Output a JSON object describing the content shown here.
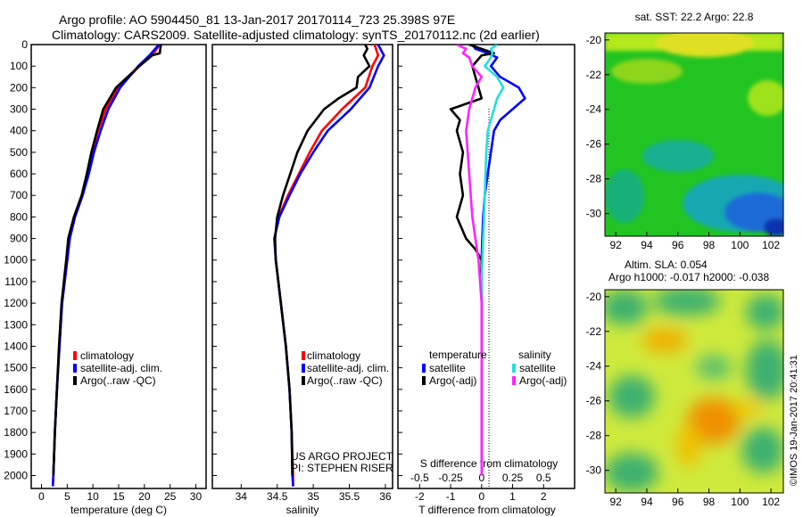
{
  "header": {
    "title_line1": "Argo profile: AO 5904450_81 13-Jan-2017 20170114_723 25.398S 97E",
    "title_line2": "Climatology: CARS2009. Satellite-adjusted climatology: synTS_20170112.nc (2d earlier)"
  },
  "colors": {
    "climatology": "#ff0000",
    "satellite": "#0000ff",
    "argo": "#000000",
    "sal_satellite": "#22dddd",
    "sal_argo": "#ff22ff"
  },
  "depth_axis": {
    "ticks": [
      "0",
      "100",
      "200",
      "300",
      "400",
      "500",
      "600",
      "700",
      "800",
      "900",
      "1000",
      "1100",
      "1200",
      "1300",
      "1400",
      "1500",
      "1600",
      "1700",
      "1800",
      "1900",
      "2000"
    ],
    "range": [
      0,
      2060
    ]
  },
  "legend_main": {
    "climatology": "climatology",
    "satellite": "satellite-adj. clim.",
    "argo": "Argo(..raw -QC)"
  },
  "project": {
    "line1": "US ARGO PROJECT",
    "line2": "PI: STEPHEN RISER"
  },
  "legend_diff": {
    "temp_title": "temperature",
    "sal_title": "salinity",
    "satellite": "satellite",
    "argo": "Argo(-adj)"
  },
  "map_sst": {
    "title": "sat. SST: 22.2  Argo: 22.8",
    "xticks": [
      "92",
      "94",
      "96",
      "98",
      "100",
      "102"
    ],
    "yticks": [
      "-20",
      "-22",
      "-24",
      "-26",
      "-28",
      "-30"
    ]
  },
  "map_sla": {
    "title1": "Altim. SLA: 0.054",
    "title2": "Argo h1000: -0.017 h2000: -0.038",
    "xticks": [
      "92",
      "94",
      "96",
      "98",
      "100",
      "102"
    ],
    "yticks": [
      "-20",
      "-22",
      "-24",
      "-26",
      "-28",
      "-30"
    ]
  },
  "credit": "©IMOS 19-Jan-2017 20:41:31",
  "chart_data": [
    {
      "type": "line",
      "xlabel": "temperature (deg C)",
      "xlim": [
        -2,
        32
      ],
      "xticks": [
        "0",
        "5",
        "10",
        "15",
        "20",
        "25",
        "30"
      ],
      "series": [
        {
          "name": "climatology",
          "depth": [
            0,
            50,
            100,
            200,
            300,
            400,
            500,
            600,
            700,
            800,
            900,
            1000,
            1200,
            1400,
            1600,
            1800,
            2000,
            2050
          ],
          "values": [
            23.0,
            21.5,
            19.0,
            15.0,
            12.5,
            11.0,
            9.8,
            9.0,
            8.0,
            6.5,
            5.5,
            5.0,
            4.0,
            3.5,
            3.0,
            2.6,
            2.3,
            2.2
          ]
        },
        {
          "name": "satellite-adj. clim.",
          "depth": [
            0,
            50,
            100,
            200,
            300,
            400,
            500,
            600,
            700,
            800,
            900,
            1000,
            1200,
            1400,
            1600,
            1800,
            2000,
            2050
          ],
          "values": [
            22.8,
            21.0,
            18.8,
            15.3,
            13.0,
            11.5,
            10.2,
            9.2,
            8.0,
            6.5,
            5.5,
            5.0,
            4.0,
            3.5,
            3.0,
            2.6,
            2.3,
            2.2
          ]
        },
        {
          "name": "Argo(..raw -QC)",
          "depth": [
            0,
            40,
            50,
            100,
            200,
            300,
            400,
            500,
            600,
            700,
            800,
            900,
            1000,
            1200,
            1400,
            1600,
            1800,
            2000
          ],
          "values": [
            23.2,
            23.0,
            21.5,
            19.0,
            14.5,
            12.0,
            10.8,
            9.7,
            8.8,
            7.8,
            6.3,
            5.2,
            4.8,
            3.9,
            3.4,
            3.0,
            2.6,
            2.3
          ]
        }
      ]
    },
    {
      "type": "line",
      "xlabel": "salinity",
      "xlim": [
        33.6,
        36.1
      ],
      "xticks": [
        "34",
        "34.5",
        "35",
        "35.5",
        "36"
      ],
      "series": [
        {
          "name": "climatology",
          "depth": [
            0,
            50,
            100,
            200,
            300,
            400,
            500,
            600,
            700,
            800,
            900,
            1000,
            1200,
            1400,
            1600,
            1800,
            2000,
            2050
          ],
          "values": [
            35.85,
            35.9,
            35.82,
            35.72,
            35.4,
            35.12,
            34.95,
            34.8,
            34.65,
            34.52,
            34.46,
            34.48,
            34.55,
            34.62,
            34.67,
            34.7,
            34.72,
            34.72
          ]
        },
        {
          "name": "satellite-adj. clim.",
          "depth": [
            0,
            50,
            100,
            200,
            300,
            400,
            500,
            600,
            700,
            800,
            900,
            1000,
            1200,
            1400,
            1600,
            1800,
            2000,
            2050
          ],
          "values": [
            35.9,
            35.98,
            35.9,
            35.78,
            35.52,
            35.2,
            35.0,
            34.82,
            34.67,
            34.53,
            34.46,
            34.48,
            34.55,
            34.62,
            34.67,
            34.7,
            34.71,
            34.72
          ]
        },
        {
          "name": "Argo(..raw -QC)",
          "depth": [
            0,
            20,
            50,
            100,
            150,
            200,
            250,
            300,
            400,
            500,
            600,
            700,
            800,
            900,
            1000,
            1200,
            1400,
            1600,
            1800,
            2000
          ],
          "values": [
            35.72,
            35.75,
            35.7,
            35.78,
            35.62,
            35.6,
            35.35,
            35.15,
            34.92,
            34.78,
            34.68,
            34.58,
            34.5,
            34.47,
            34.48,
            34.55,
            34.62,
            34.67,
            34.7,
            34.71
          ]
        }
      ]
    },
    {
      "type": "line",
      "xlabel": "T difference from climatology",
      "x2label": "S difference from climatology",
      "xlim": [
        -2.7,
        3.0
      ],
      "xticks": [
        "-2",
        "-1",
        "0",
        "1",
        "2"
      ],
      "x2ticks": [
        "-0.5",
        "-0.25",
        "0",
        "0.25",
        "0.5"
      ],
      "series": [
        {
          "name": "satellite",
          "depth": [
            0,
            20,
            40,
            60,
            100,
            150,
            200,
            250,
            300,
            350,
            400,
            500,
            600,
            700,
            800,
            900,
            1000,
            1200,
            1400,
            1600,
            1800,
            2000
          ],
          "values": [
            -0.3,
            -0.2,
            0.2,
            0.5,
            0.3,
            0.6,
            1.2,
            1.4,
            1.0,
            0.6,
            0.4,
            0.3,
            0.2,
            0.1,
            0.05,
            0.02,
            0.0,
            0.0,
            0.0,
            0.0,
            0.0,
            0.0
          ]
        },
        {
          "name": "Argo(-adj)",
          "depth": [
            0,
            40,
            50,
            100,
            150,
            200,
            250,
            300,
            350,
            400,
            500,
            600,
            700,
            800,
            900,
            950,
            1000,
            1200,
            1400,
            1600,
            1800,
            2000
          ],
          "values": [
            -0.4,
            0.4,
            0.0,
            -0.3,
            -0.2,
            -0.1,
            0.0,
            -1.0,
            -0.7,
            -0.8,
            -0.6,
            -0.7,
            -0.6,
            -0.8,
            -0.5,
            -0.2,
            0.0,
            0.0,
            0.0,
            0.0,
            0.0,
            0.0
          ]
        },
        {
          "name": "satellite (S)",
          "depth": [
            0,
            20,
            40,
            60,
            100,
            150,
            200,
            250,
            300,
            400,
            500,
            700,
            900,
            1100,
            1300,
            1600,
            2000
          ],
          "values": [
            0.5,
            0.3,
            0.35,
            0.3,
            0.1,
            0.5,
            0.7,
            0.5,
            0.4,
            0.2,
            0.15,
            0.1,
            0.05,
            0.0,
            0.0,
            0.0,
            0.0
          ]
        },
        {
          "name": "Argo(-adj) (S)",
          "depth": [
            0,
            20,
            40,
            60,
            100,
            150,
            200,
            250,
            300,
            400,
            500,
            600,
            700,
            800,
            900,
            1000,
            1200,
            1600,
            2000
          ],
          "values": [
            -0.8,
            -0.5,
            -0.6,
            -0.4,
            -0.3,
            0.0,
            -0.2,
            -0.3,
            -0.4,
            -0.5,
            -0.45,
            -0.4,
            -0.35,
            -0.3,
            -0.2,
            -0.1,
            0.0,
            0.0,
            0.0
          ]
        }
      ]
    }
  ]
}
